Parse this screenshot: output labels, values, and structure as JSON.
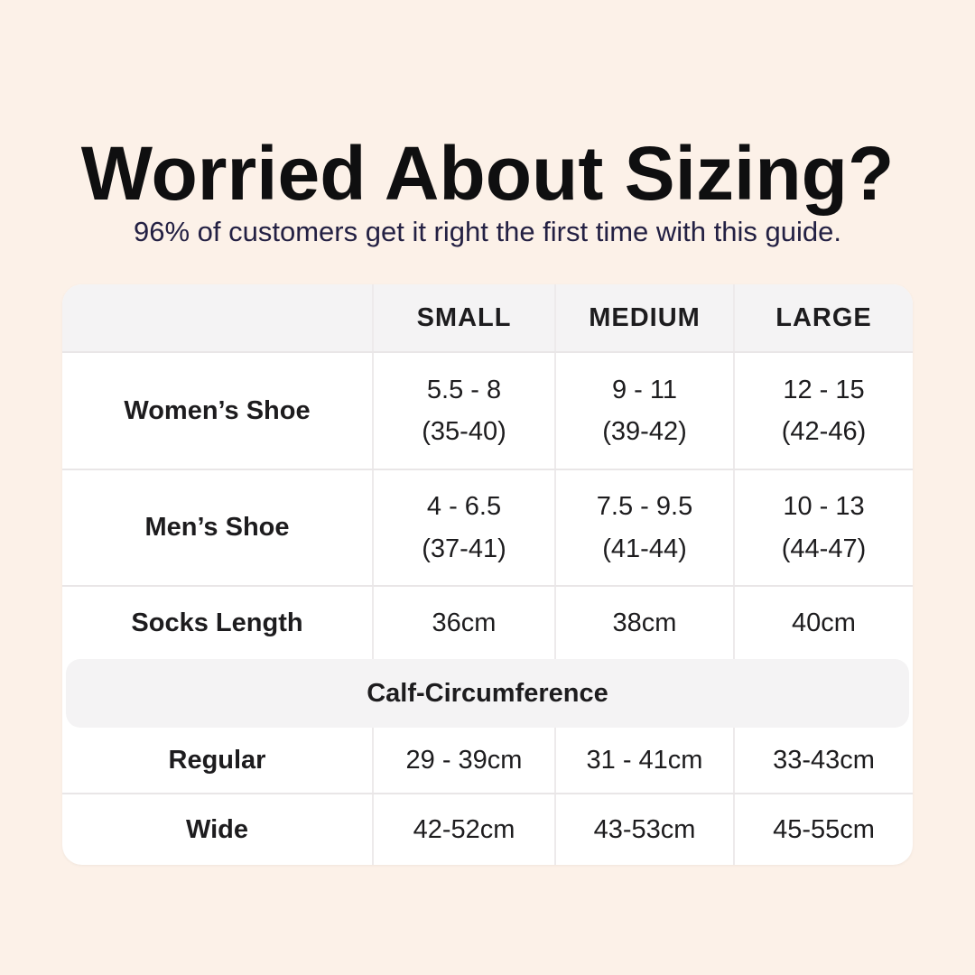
{
  "poster": {
    "title": "Worried About Sizing?",
    "subtitle": "96% of customers get it right the first time with this guide."
  },
  "colors": {
    "background": "#fcf1e8",
    "card": "#ffffff",
    "header_band": "#f4f3f4",
    "divider": "#e9e6e7",
    "title_text": "#0f0f10",
    "subtitle_text": "#232043",
    "table_text": "#1d1c1e"
  },
  "table": {
    "column_headers": [
      "SMALL",
      "MEDIUM",
      "LARGE"
    ],
    "rows": [
      {
        "label": "Women’s Shoe",
        "values": [
          "5.5 - 8",
          "9 - 11",
          "12 - 15"
        ],
        "sub_values": [
          "(35-40)",
          "(39-42)",
          "(42-46)"
        ]
      },
      {
        "label": "Men’s Shoe",
        "values": [
          "4 - 6.5",
          "7.5 - 9.5",
          "10 - 13"
        ],
        "sub_values": [
          "(37-41)",
          "(41-44)",
          "(44-47)"
        ]
      },
      {
        "label": "Socks Length",
        "values": [
          "36cm",
          "38cm",
          "40cm"
        ]
      }
    ],
    "section_header": "Calf-Circumference",
    "section_rows": [
      {
        "label": "Regular",
        "values": [
          "29 - 39cm",
          "31 - 41cm",
          "33-43cm"
        ]
      },
      {
        "label": "Wide",
        "values": [
          "42-52cm",
          "43-53cm",
          "45-55cm"
        ]
      }
    ]
  },
  "chart_data": {
    "type": "table",
    "title": "Worried About Sizing?",
    "subtitle": "96% of customers get it right the first time with this guide.",
    "columns": [
      "",
      "SMALL",
      "MEDIUM",
      "LARGE"
    ],
    "rows": [
      [
        "Women’s Shoe",
        "5.5 - 8 (35-40)",
        "9 - 11 (39-42)",
        "12 - 15 (42-46)"
      ],
      [
        "Men’s Shoe",
        "4 - 6.5 (37-41)",
        "7.5 - 9.5 (41-44)",
        "10 - 13 (44-47)"
      ],
      [
        "Socks Length",
        "36cm",
        "38cm",
        "40cm"
      ],
      [
        "Calf-Circumference (Regular)",
        "29 - 39cm",
        "31 - 41cm",
        "33-43cm"
      ],
      [
        "Calf-Circumference (Wide)",
        "42-52cm",
        "43-53cm",
        "45-55cm"
      ]
    ]
  }
}
